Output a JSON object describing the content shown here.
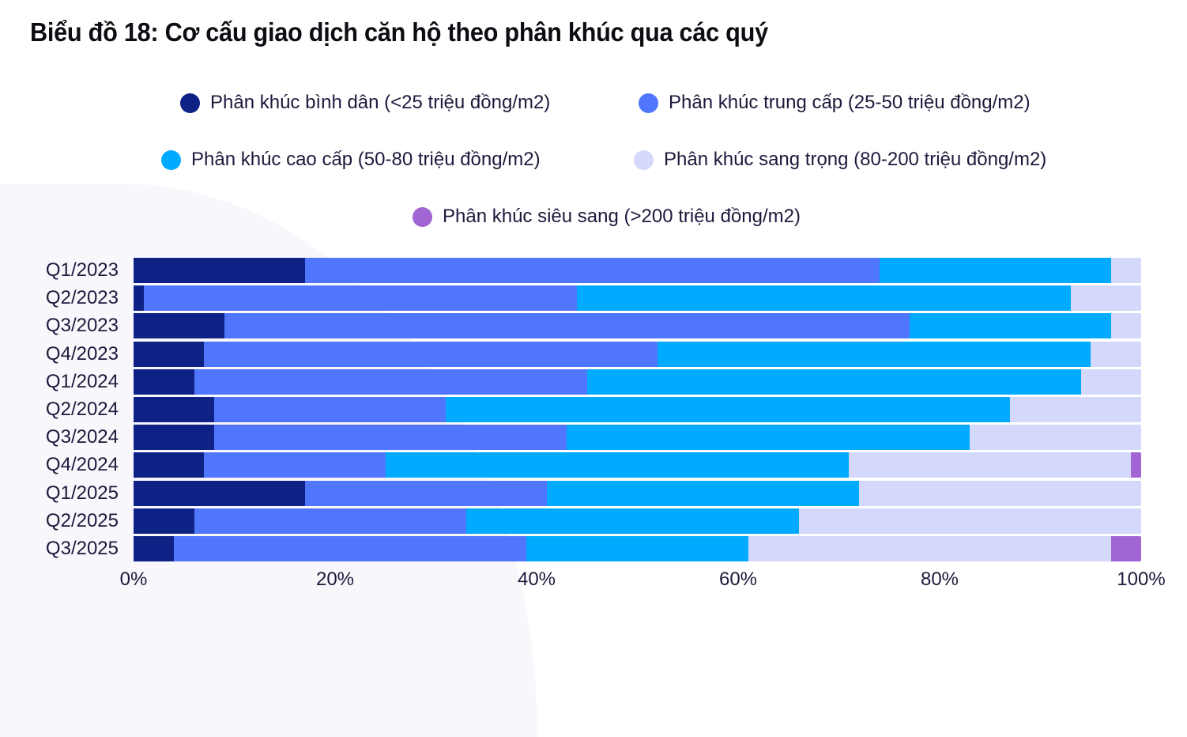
{
  "title": "Biểu đồ 18: Cơ cấu giao dịch căn hộ theo phân khúc qua các quý",
  "legend": [
    {
      "label": "Phân khúc bình dân (<25 triệu đồng/m2)",
      "color": "#0e2185"
    },
    {
      "label": "Phân khúc trung cấp (25-50 triệu đồng/m2)",
      "color": "#5176fe"
    },
    {
      "label": "Phân khúc cao cấp (50-80 triệu đồng/m2)",
      "color": "#00aaff"
    },
    {
      "label": "Phân khúc sang trọng (80-200 triệu đồng/m2)",
      "color": "#d4d9fc"
    },
    {
      "label": "Phân khúc siêu sang (>200 triệu đồng/m2)",
      "color": "#a166d4"
    }
  ],
  "xaxis": {
    "ticks": [
      "0%",
      "20%",
      "40%",
      "60%",
      "80%",
      "100%"
    ]
  },
  "chart_data": {
    "type": "bar",
    "orientation": "horizontal",
    "stacked": true,
    "normalized": true,
    "title": "Biểu đồ 18: Cơ cấu giao dịch căn hộ theo phân khúc qua các quý",
    "xlabel": "",
    "ylabel": "",
    "xlim": [
      0,
      100
    ],
    "x_tick_labels": [
      "0%",
      "20%",
      "40%",
      "60%",
      "80%",
      "100%"
    ],
    "legend_position": "top",
    "grid": false,
    "categories": [
      "Q1/2023",
      "Q2/2023",
      "Q3/2023",
      "Q4/2023",
      "Q1/2024",
      "Q2/2024",
      "Q3/2024",
      "Q4/2024",
      "Q1/2025",
      "Q2/2025",
      "Q3/2025"
    ],
    "series": [
      {
        "name": "Phân khúc bình dân (<25 triệu đồng/m2)",
        "color": "#0e2185",
        "values": [
          17,
          1,
          9,
          7,
          6,
          8,
          8,
          7,
          17,
          6,
          4
        ]
      },
      {
        "name": "Phân khúc trung cấp (25-50 triệu đồng/m2)",
        "color": "#5176fe",
        "values": [
          57,
          43,
          68,
          45,
          39,
          23,
          35,
          18,
          24,
          27,
          35
        ]
      },
      {
        "name": "Phân khúc cao cấp (50-80 triệu đồng/m2)",
        "color": "#00aaff",
        "values": [
          23,
          49,
          20,
          43,
          49,
          56,
          40,
          46,
          31,
          33,
          22
        ]
      },
      {
        "name": "Phân khúc sang trọng (80-200 triệu đồng/m2)",
        "color": "#d4d9fc",
        "values": [
          3,
          7,
          3,
          5,
          6,
          13,
          17,
          28,
          28,
          34,
          36
        ]
      },
      {
        "name": "Phân khúc siêu sang (>200 triệu đồng/m2)",
        "color": "#a166d4",
        "values": [
          0,
          0,
          0,
          0,
          0,
          0,
          0,
          1,
          0,
          0,
          3
        ]
      }
    ]
  }
}
